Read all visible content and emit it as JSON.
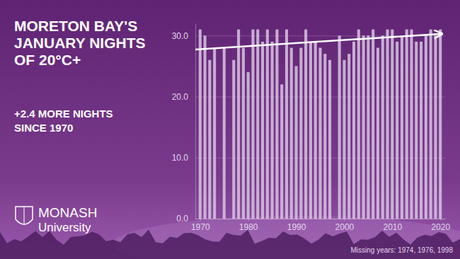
{
  "chart_data": {
    "type": "bar",
    "title": [
      "MORETON BAY'S",
      "JANUARY NIGHTS",
      "OF 20°C+"
    ],
    "subtitle": [
      "+2.4 MORE NIGHTS",
      "SINCE 1970"
    ],
    "logo": [
      "MONASH",
      "University"
    ],
    "note": "Missing years: 1974, 1976, 1998",
    "x": [
      1970,
      1971,
      1972,
      1973,
      1975,
      1977,
      1978,
      1979,
      1980,
      1981,
      1982,
      1983,
      1984,
      1985,
      1986,
      1987,
      1988,
      1989,
      1990,
      1991,
      1992,
      1993,
      1994,
      1995,
      1996,
      1997,
      1999,
      2000,
      2001,
      2002,
      2003,
      2004,
      2005,
      2006,
      2007,
      2008,
      2009,
      2010,
      2011,
      2012,
      2013,
      2014,
      2015,
      2016,
      2017,
      2018,
      2019,
      2020
    ],
    "values": [
      31,
      30,
      26,
      28,
      28,
      26,
      31,
      28,
      24,
      31,
      31,
      29,
      31,
      29,
      31,
      22,
      31,
      28,
      25,
      28,
      31,
      29,
      29,
      28,
      27,
      26,
      30,
      26,
      27,
      29,
      31,
      30,
      30,
      31,
      28,
      30,
      31,
      31,
      29,
      30,
      31,
      31,
      29,
      29,
      30,
      31,
      30,
      31
    ],
    "color": "#d8c4e2",
    "trend": {
      "x": [
        1969,
        2020.5
      ],
      "values": [
        27.7,
        30.3
      ]
    },
    "xlim": [
      1969,
      2021
    ],
    "xticks": [
      1970,
      1980,
      1990,
      2000,
      2010,
      2020
    ],
    "ylim": [
      0,
      32
    ],
    "yticks": [
      {
        "value": 0,
        "label": "0.0"
      },
      {
        "value": 10,
        "label": "10.0"
      },
      {
        "value": 20,
        "label": "20.0"
      },
      {
        "value": 30,
        "label": "30.0"
      }
    ],
    "grid": true
  }
}
